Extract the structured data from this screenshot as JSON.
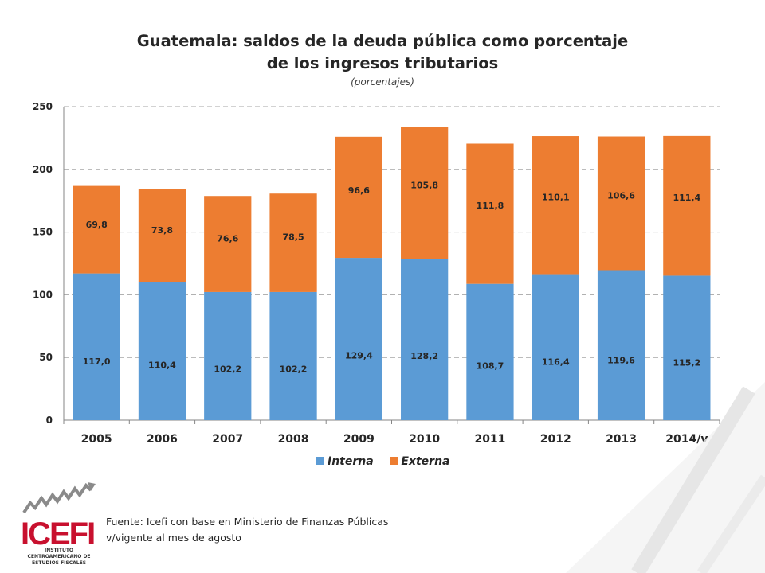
{
  "chart_data": {
    "type": "bar",
    "stacked": true,
    "title": "Guatemala: saldos de la deuda pública como porcentaje de los ingresos tributarios",
    "subtitle": "(porcentajes)",
    "categories": [
      "2005",
      "2006",
      "2007",
      "2008",
      "2009",
      "2010",
      "2011",
      "2012",
      "2013",
      "2014/v"
    ],
    "series": [
      {
        "name": "Interna",
        "color": "#5B9BD5",
        "values": [
          117.0,
          110.4,
          102.2,
          102.2,
          129.4,
          128.2,
          108.7,
          116.4,
          119.6,
          115.2
        ],
        "labels": [
          "117,0",
          "110,4",
          "102,2",
          "102,2",
          "129,4",
          "128,2",
          "108,7",
          "116,4",
          "119,6",
          "115,2"
        ]
      },
      {
        "name": "Externa",
        "color": "#ED7D31",
        "values": [
          69.8,
          73.8,
          76.6,
          78.5,
          96.6,
          105.8,
          111.8,
          110.1,
          106.6,
          111.4
        ],
        "labels": [
          "69,8",
          "73,8",
          "76,6",
          "78,5",
          "96,6",
          "105,8",
          "111,8",
          "110,1",
          "106,6",
          "111,4"
        ]
      }
    ],
    "ylim": [
      0,
      250
    ],
    "yticks": [
      0,
      50,
      100,
      150,
      200,
      250
    ],
    "grid": true,
    "legend_position": "bottom"
  },
  "footer": {
    "source": "Fuente: Icefi con base en Ministerio de Finanzas Públicas",
    "note": "v/vigente al mes de agosto"
  },
  "logo": {
    "text": "ICEFI",
    "subtitle": "INSTITUTO CENTROAMERICANO DE ESTUDIOS FISCALES",
    "color": "#C8102E"
  }
}
